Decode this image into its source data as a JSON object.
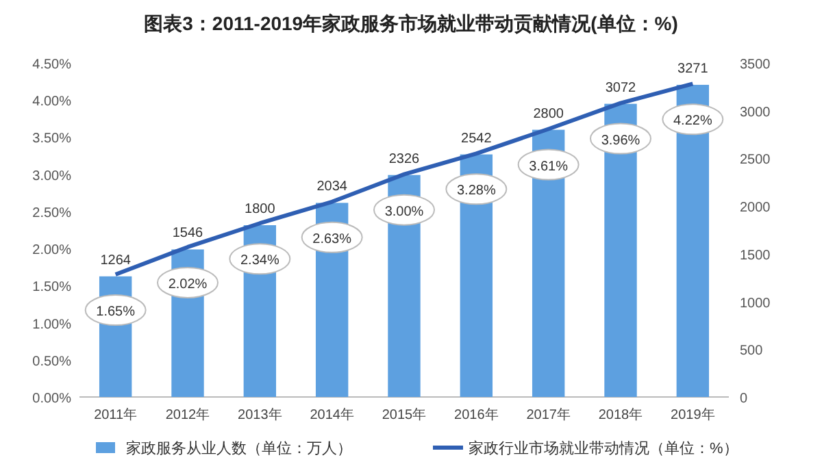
{
  "chart_data": {
    "type": "bar",
    "title": "图表3：2011-2019年家政服务市场就业带动贡献情况(单位：%)",
    "categories": [
      "2011年",
      "2012年",
      "2013年",
      "2014年",
      "2015年",
      "2016年",
      "2017年",
      "2018年",
      "2019年"
    ],
    "series": [
      {
        "name": "家政服务从业人数（单位：万人）",
        "type": "bar",
        "axis": "y2",
        "color": "#5da0e0",
        "values": [
          1264,
          1546,
          1800,
          2034,
          2326,
          2542,
          2800,
          3072,
          3271
        ],
        "value_labels": [
          "1264",
          "1546",
          "1800",
          "2034",
          "2326",
          "2542",
          "2800",
          "3072",
          "3271"
        ]
      },
      {
        "name": "家政行业市场就业带动情况（单位：%）",
        "type": "line",
        "color": "#2f5fb3",
        "values": [
          1.65,
          2.02,
          2.34,
          2.63,
          3.0,
          3.28,
          3.61,
          3.96,
          4.22
        ],
        "value_labels": [
          "1.65%",
          "2.02%",
          "2.34%",
          "2.63%",
          "3.00%",
          "3.28%",
          "3.61%",
          "3.96%",
          "4.22%"
        ]
      }
    ],
    "ylim": [
      0,
      4.5
    ],
    "yticks": [
      {
        "value": 0,
        "label": "0.00%"
      },
      {
        "value": 0.5,
        "label": "0.50%"
      },
      {
        "value": 1,
        "label": "1.00%"
      },
      {
        "value": 1.5,
        "label": "1.50%"
      },
      {
        "value": 2,
        "label": "2.00%"
      },
      {
        "value": 2.5,
        "label": "2.50%"
      },
      {
        "value": 3,
        "label": "3.00%"
      },
      {
        "value": 3.5,
        "label": "3.50%"
      },
      {
        "value": 4,
        "label": "4.00%"
      },
      {
        "value": 4.5,
        "label": "4.50%"
      }
    ],
    "y2lim": [
      0,
      3500
    ],
    "y2ticks": [
      0,
      500,
      1000,
      1500,
      2000,
      2500,
      3000,
      3500
    ],
    "legend": "bottom",
    "grid": false
  }
}
